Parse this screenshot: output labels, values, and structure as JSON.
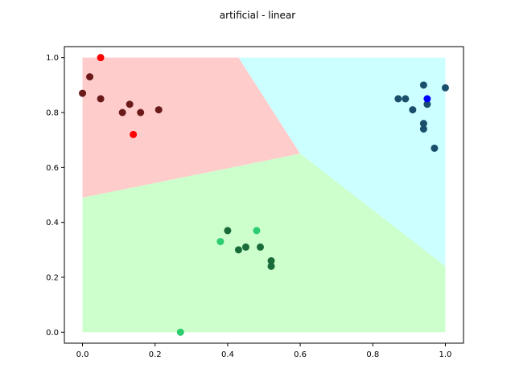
{
  "chart_data": {
    "type": "scatter",
    "title": "artificial - linear",
    "xlabel": "",
    "ylabel": "",
    "xlim": [
      -0.05,
      1.05
    ],
    "ylim": [
      -0.04,
      1.04
    ],
    "xticks": [
      "0.0",
      "0.2",
      "0.4",
      "0.6",
      "0.8",
      "1.0"
    ],
    "yticks": [
      "0.0",
      "0.2",
      "0.4",
      "0.6",
      "0.8",
      "1.0"
    ],
    "grid": false,
    "legend": "none",
    "regions": [
      {
        "class": "red",
        "color": "#ffcccc",
        "polygon": [
          [
            0,
            1
          ],
          [
            0.43,
            1
          ],
          [
            0.6,
            0.65
          ],
          [
            0,
            0.49
          ]
        ]
      },
      {
        "class": "cyan",
        "color": "#ccffff",
        "polygon": [
          [
            0.43,
            1
          ],
          [
            1,
            1
          ],
          [
            1,
            0.24
          ],
          [
            0.6,
            0.65
          ]
        ]
      },
      {
        "class": "green",
        "color": "#ccffcc",
        "polygon": [
          [
            0,
            0.49
          ],
          [
            0.6,
            0.65
          ],
          [
            1,
            0.24
          ],
          [
            1,
            0
          ],
          [
            0,
            0
          ]
        ]
      }
    ],
    "series": [
      {
        "color": "#6b1a1a",
        "points": [
          [
            0.0,
            0.87
          ],
          [
            0.02,
            0.93
          ],
          [
            0.05,
            0.85
          ],
          [
            0.11,
            0.8
          ],
          [
            0.13,
            0.83
          ],
          [
            0.16,
            0.8
          ],
          [
            0.21,
            0.81
          ]
        ]
      },
      {
        "color": "#ff0000",
        "points": [
          [
            0.05,
            1.0
          ],
          [
            0.14,
            0.72
          ]
        ]
      },
      {
        "color": "#1a6b3a",
        "points": [
          [
            0.4,
            0.37
          ],
          [
            0.43,
            0.3
          ],
          [
            0.45,
            0.31
          ],
          [
            0.49,
            0.31
          ],
          [
            0.52,
            0.26
          ],
          [
            0.52,
            0.24
          ]
        ]
      },
      {
        "color": "#2ecc71",
        "points": [
          [
            0.38,
            0.33
          ],
          [
            0.48,
            0.37
          ],
          [
            0.27,
            0.0
          ]
        ]
      },
      {
        "color": "#1a4f6b",
        "points": [
          [
            0.87,
            0.85
          ],
          [
            0.89,
            0.85
          ],
          [
            0.91,
            0.81
          ],
          [
            0.94,
            0.9
          ],
          [
            0.95,
            0.83
          ],
          [
            1.0,
            0.89
          ],
          [
            0.94,
            0.76
          ],
          [
            0.94,
            0.74
          ],
          [
            0.97,
            0.67
          ]
        ]
      },
      {
        "color": "#0000ff",
        "points": [
          [
            0.95,
            0.85
          ]
        ]
      }
    ]
  }
}
